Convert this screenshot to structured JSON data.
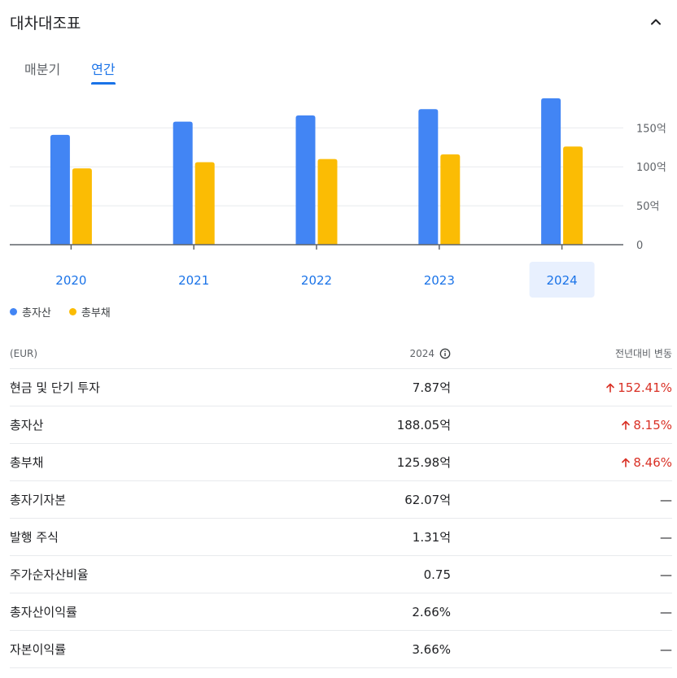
{
  "header": {
    "title": "대차대조표"
  },
  "tabs": [
    {
      "label": "매분기",
      "active": false
    },
    {
      "label": "연간",
      "active": true
    }
  ],
  "chart_data": {
    "type": "bar",
    "categories": [
      "2020",
      "2021",
      "2022",
      "2023",
      "2024"
    ],
    "selected_category": "2024",
    "series": [
      {
        "name": "총자산",
        "color": "#4285f4",
        "values": [
          141,
          158,
          166,
          174,
          188.05
        ]
      },
      {
        "name": "총부채",
        "color": "#fbbc04",
        "values": [
          98,
          106,
          110,
          116,
          125.98
        ]
      }
    ],
    "yticks": [
      {
        "value": 0,
        "label": "0"
      },
      {
        "value": 50,
        "label": "50억"
      },
      {
        "value": 100,
        "label": "100억"
      },
      {
        "value": 150,
        "label": "150억"
      }
    ],
    "ylim": [
      0,
      200
    ],
    "grid": true,
    "legend_position": "bottom-left"
  },
  "legend": [
    {
      "label": "총자산",
      "color": "#4285f4"
    },
    {
      "label": "총부채",
      "color": "#fbbc04"
    }
  ],
  "table": {
    "headers": {
      "currency": "(EUR)",
      "year": "2024",
      "change": "전년대비 변동"
    },
    "rows": [
      {
        "label": "현금 및 단기 투자",
        "value": "7.87억",
        "change": "152.41%",
        "trend": "up"
      },
      {
        "label": "총자산",
        "value": "188.05억",
        "change": "8.15%",
        "trend": "up"
      },
      {
        "label": "총부채",
        "value": "125.98억",
        "change": "8.46%",
        "trend": "up"
      },
      {
        "label": "총자기자본",
        "value": "62.07억",
        "change": "—",
        "trend": "none"
      },
      {
        "label": "발행 주식",
        "value": "1.31억",
        "change": "—",
        "trend": "none"
      },
      {
        "label": "주가순자산비율",
        "value": "0.75",
        "change": "—",
        "trend": "none"
      },
      {
        "label": "총자산이익률",
        "value": "2.66%",
        "change": "—",
        "trend": "none"
      },
      {
        "label": "자본이익률",
        "value": "3.66%",
        "change": "—",
        "trend": "none"
      }
    ]
  },
  "colors": {
    "accent": "#1a73e8",
    "positive": "#d93025",
    "selected_bg": "#e8f0fe"
  },
  "icons": {
    "collapse": "chevron-up-icon",
    "info": "info-icon",
    "trend_up": "arrow-up-icon"
  }
}
